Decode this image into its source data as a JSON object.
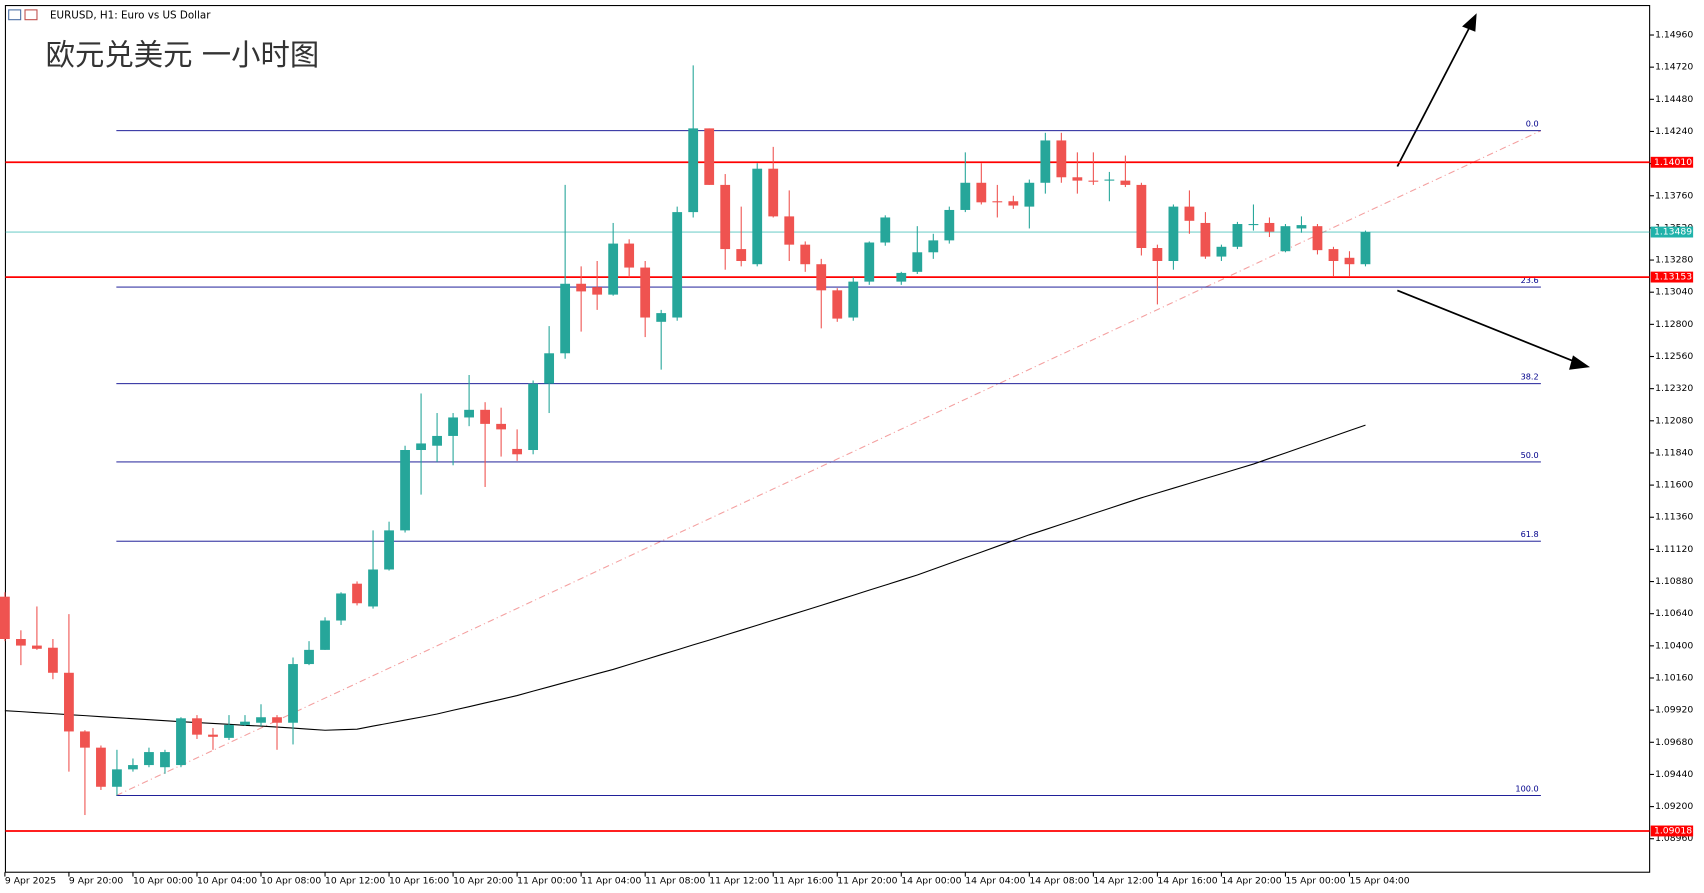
{
  "chart_data": {
    "type": "candlestick",
    "symbol_title": "EURUSD, H1:  Euro vs US Dollar",
    "annotation": "欧元兑美元 一小时图",
    "up_color": "#26a69a",
    "down_color": "#ef5350",
    "categories": [
      "9 Apr 2025",
      null,
      null,
      null,
      "9 Apr 20:00",
      null,
      null,
      null,
      "10 Apr 00:00",
      null,
      null,
      null,
      "10 Apr 04:00",
      null,
      null,
      null,
      "10 Apr 08:00",
      null,
      null,
      null,
      "10 Apr 12:00",
      null,
      null,
      null,
      "10 Apr 16:00",
      null,
      null,
      null,
      "10 Apr 20:00",
      null,
      null,
      null,
      "11 Apr 00:00",
      null,
      null,
      null,
      "11 Apr 04:00",
      null,
      null,
      null,
      "11 Apr 08:00",
      null,
      null,
      null,
      "11 Apr 12:00",
      null,
      null,
      null,
      "11 Apr 16:00",
      null,
      null,
      null,
      "11 Apr 20:00",
      null,
      null,
      null,
      "14 Apr 00:00",
      null,
      null,
      null,
      "14 Apr 04:00",
      null,
      null,
      null,
      "14 Apr 08:00",
      null,
      null,
      null,
      "14 Apr 12:00",
      null,
      null,
      null,
      "14 Apr 16:00",
      null,
      null,
      null,
      "14 Apr 20:00",
      null,
      null,
      null,
      "15 Apr 00:00",
      null,
      null,
      null,
      "15 Apr 04:00",
      null
    ],
    "open": [
      1.10767,
      1.10451,
      1.10402,
      1.10386,
      1.10199,
      1.09761,
      1.0964,
      1.09348,
      1.09478,
      1.0951,
      1.09494,
      1.0951,
      1.09859,
      1.09737,
      1.09713,
      1.0981,
      1.09826,
      1.09867,
      1.09826,
      1.10264,
      1.1037,
      1.10589,
      1.10864,
      1.10694,
      1.1097,
      1.11262,
      1.11862,
      1.11894,
      1.11967,
      1.12105,
      1.12162,
      1.12057,
      1.1187,
      1.11862,
      1.12357,
      1.12584,
      1.13103,
      1.13078,
      1.13022,
      1.13403,
      1.13224,
      1.12819,
      1.12851,
      1.13638,
      1.14263,
      1.13841,
      1.13362,
      1.13249,
      1.13962,
      1.13606,
      1.13395,
      1.13249,
      1.13054,
      1.12851,
      1.13119,
      1.13411,
      1.13119,
      1.13192,
      1.13338,
      1.13427,
      1.13654,
      1.13857,
      1.13719,
      1.13719,
      1.13679,
      1.13857,
      1.14173,
      1.13898,
      1.13873,
      1.13873,
      1.13873,
      1.13841,
      1.1337,
      1.13273,
      1.13679,
      1.13557,
      1.13306,
      1.13379,
      1.13541,
      1.13557,
      1.13346,
      1.13516,
      1.13533,
      1.13362,
      1.13297,
      1.13249
    ],
    "high": [
      1.108,
      1.10516,
      1.10694,
      1.10451,
      1.10637,
      1.0977,
      1.09656,
      1.09624,
      1.09559,
      1.0964,
      1.09624,
      1.09867,
      1.09883,
      1.09786,
      1.09883,
      1.09883,
      1.09964,
      1.09883,
      1.10313,
      1.10435,
      1.10613,
      1.108,
      1.10881,
      1.11262,
      1.11327,
      1.11894,
      1.12284,
      1.12138,
      1.12138,
      1.12422,
      1.12219,
      1.12178,
      1.12016,
      1.12381,
      1.12787,
      1.13841,
      1.13233,
      1.13273,
      1.13557,
      1.13435,
      1.13273,
      1.12908,
      1.13679,
      1.14733,
      1.14263,
      1.13922,
      1.13679,
      1.14003,
      1.14125,
      1.138,
      1.13419,
      1.13289,
      1.1307,
      1.13151,
      1.13419,
      1.13614,
      1.13192,
      1.13533,
      1.13476,
      1.13679,
      1.14084,
      1.14003,
      1.13841,
      1.1376,
      1.13881,
      1.1423,
      1.1423,
      1.14084,
      1.14084,
      1.13938,
      1.1406,
      1.13857,
      1.13395,
      1.13695,
      1.138,
      1.13638,
      1.13395,
      1.13565,
      1.13695,
      1.13598,
      1.13549,
      1.13606,
      1.13549,
      1.13379,
      1.13346,
      1.135
    ],
    "low": [
      1.10435,
      1.10256,
      1.1037,
      1.10151,
      1.09461,
      1.09137,
      1.09324,
      1.09283,
      1.09461,
      1.09494,
      1.09445,
      1.09494,
      1.09705,
      1.09624,
      1.09697,
      1.09802,
      1.09802,
      1.09624,
      1.09664,
      1.10256,
      1.1037,
      1.10556,
      1.10702,
      1.10678,
      1.10962,
      1.11246,
      1.11529,
      1.11773,
      1.11748,
      1.1204,
      1.11586,
      1.11813,
      1.11781,
      1.1183,
      1.12138,
      1.12543,
      1.12746,
      1.12908,
      1.13014,
      1.13151,
      1.12705,
      1.12462,
      1.12827,
      1.13598,
      1.13841,
      1.13208,
      1.13233,
      1.13233,
      1.13598,
      1.13273,
      1.13192,
      1.1277,
      1.12819,
      1.12827,
      1.13095,
      1.13387,
      1.13095,
      1.13176,
      1.13289,
      1.13403,
      1.13638,
      1.13695,
      1.13598,
      1.13662,
      1.13516,
      1.13776,
      1.13857,
      1.13776,
      1.13841,
      1.13719,
      1.13825,
      1.13314,
      1.12949,
      1.13208,
      1.13476,
      1.13289,
      1.13273,
      1.13362,
      1.135,
      1.13452,
      1.13338,
      1.13484,
      1.13322,
      1.1316,
      1.1316,
      1.13233
    ],
    "close": [
      1.10451,
      1.10402,
      1.10378,
      1.10199,
      1.09761,
      1.0964,
      1.09348,
      1.09478,
      1.0951,
      1.09607,
      1.09607,
      1.09859,
      1.09737,
      1.09721,
      1.0981,
      1.09834,
      1.09867,
      1.09826,
      1.10264,
      1.1037,
      1.10589,
      1.10791,
      1.10718,
      1.1097,
      1.11262,
      1.11862,
      1.11911,
      1.11967,
      1.12105,
      1.12162,
      1.12057,
      1.12016,
      1.1183,
      1.12357,
      1.12584,
      1.13103,
      1.13046,
      1.13022,
      1.13403,
      1.13224,
      1.12851,
      1.12884,
      1.13638,
      1.14263,
      1.13841,
      1.13362,
      1.13273,
      1.13962,
      1.13606,
      1.13395,
      1.13249,
      1.13054,
      1.12843,
      1.13119,
      1.13411,
      1.13598,
      1.13184,
      1.13338,
      1.13427,
      1.13654,
      1.13857,
      1.13711,
      1.13711,
      1.13687,
      1.13857,
      1.14173,
      1.13898,
      1.13873,
      1.13865,
      1.13881,
      1.13841,
      1.1337,
      1.13273,
      1.13679,
      1.13573,
      1.13306,
      1.13379,
      1.13549,
      1.13549,
      1.13492,
      1.13533,
      1.13541,
      1.13354,
      1.13273,
      1.13249,
      1.13489
    ],
    "moving_average": {
      "color": "#000000",
      "values": [
        1.09916,
        1.09909,
        1.09901,
        1.09894,
        1.09886,
        1.09879,
        1.09871,
        1.09864,
        1.09856,
        1.09849,
        1.09841,
        1.09834,
        1.09827,
        1.09821,
        1.09814,
        1.09807,
        1.09801,
        1.09794,
        1.09786,
        1.09778,
        1.0977,
        1.09774,
        1.09778,
        1.09801,
        1.09823,
        1.09846,
        1.09868,
        1.09891,
        1.09919,
        1.09946,
        1.09974,
        1.10001,
        1.10029,
        1.10062,
        1.10094,
        1.10127,
        1.10159,
        1.10192,
        1.10224,
        1.10261,
        1.10297,
        1.10334,
        1.1037,
        1.10407,
        1.10443,
        1.1048,
        1.10517,
        1.10554,
        1.10591,
        1.10628,
        1.10665,
        1.10702,
        1.1074,
        1.10778,
        1.10816,
        1.10853,
        1.10891,
        1.10929,
        1.10972,
        1.11015,
        1.11058,
        1.111,
        1.11143,
        1.11186,
        1.11229,
        1.11268,
        1.11308,
        1.11347,
        1.11387,
        1.11426,
        1.11466,
        1.11505,
        1.11541,
        1.11577,
        1.11613,
        1.11649,
        1.11685,
        1.11721,
        1.11757,
        1.11799,
        1.1184,
        1.11882,
        1.11923,
        1.11965,
        1.12007,
        1.12048
      ]
    },
    "fibonacci": {
      "color": "#00008b",
      "trend_color": "#f4a0a0",
      "levels": [
        {
          "value": 1.14246,
          "label": "0.0"
        },
        {
          "value": 1.13078,
          "label": "23.6"
        },
        {
          "value": 1.12357,
          "label": "38.2"
        },
        {
          "value": 1.11773,
          "label": "50.0"
        },
        {
          "value": 1.11181,
          "label": "61.8"
        },
        {
          "value": 1.09283,
          "label": "100.0"
        }
      ]
    },
    "price_lines": [
      {
        "value": 1.1401,
        "label": "1.14010",
        "color": "#ff0000"
      },
      {
        "value": 1.13489,
        "label": "1.13489",
        "color": "#20b2aa"
      },
      {
        "value": 1.13153,
        "label": "1.13153",
        "color": "#ff0000"
      },
      {
        "value": 1.09018,
        "label": "1.09018",
        "color": "#ff0000"
      }
    ],
    "ylim": [
      1.0871,
      1.1518
    ],
    "yticks": [
      {
        "value": 1.0896,
        "label": "1.08960"
      },
      {
        "value": 1.092,
        "label": "1.09200"
      },
      {
        "value": 1.0944,
        "label": "1.09440"
      },
      {
        "value": 1.0968,
        "label": "1.09680"
      },
      {
        "value": 1.0992,
        "label": "1.09920"
      },
      {
        "value": 1.1016,
        "label": "1.10160"
      },
      {
        "value": 1.104,
        "label": "1.10400"
      },
      {
        "value": 1.1064,
        "label": "1.10640"
      },
      {
        "value": 1.1088,
        "label": "1.10880"
      },
      {
        "value": 1.1112,
        "label": "1.11120"
      },
      {
        "value": 1.1136,
        "label": "1.11360"
      },
      {
        "value": 1.116,
        "label": "1.11600"
      },
      {
        "value": 1.1184,
        "label": "1.11840"
      },
      {
        "value": 1.1208,
        "label": "1.12080"
      },
      {
        "value": 1.1232,
        "label": "1.12320"
      },
      {
        "value": 1.1256,
        "label": "1.12560"
      },
      {
        "value": 1.128,
        "label": "1.12800"
      },
      {
        "value": 1.1304,
        "label": "1.13040"
      },
      {
        "value": 1.1328,
        "label": "1.13280"
      },
      {
        "value": 1.1352,
        "label": "1.13520"
      },
      {
        "value": 1.1376,
        "label": "1.13760"
      },
      {
        "value": 1.14,
        "label": "1.14000"
      },
      {
        "value": 1.1424,
        "label": "1.14240"
      },
      {
        "value": 1.1448,
        "label": "1.14480"
      },
      {
        "value": 1.1472,
        "label": "1.14720"
      },
      {
        "value": 1.1496,
        "label": "1.14960"
      }
    ]
  }
}
